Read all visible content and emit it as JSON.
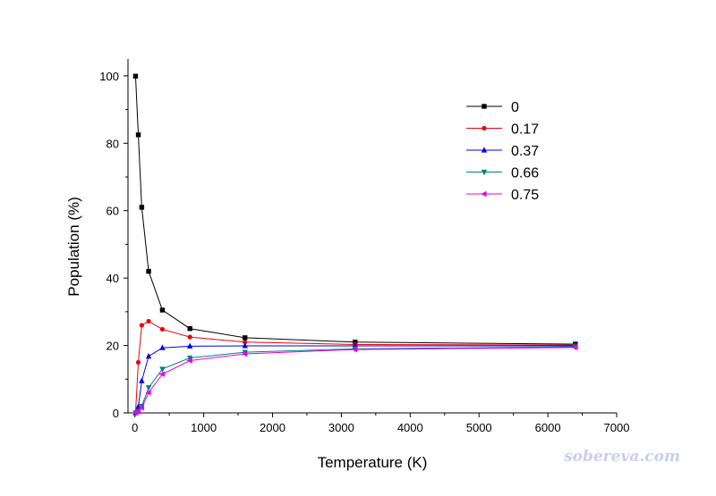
{
  "chart_data": {
    "type": "line",
    "xlabel": "Temperature (K)",
    "ylabel": "Population (%)",
    "xlim": [
      -100,
      7000
    ],
    "ylim": [
      0,
      105
    ],
    "xticks": [
      0,
      1000,
      2000,
      3000,
      4000,
      5000,
      6000,
      7000
    ],
    "yticks": [
      0,
      20,
      40,
      60,
      80,
      100
    ],
    "grid": false,
    "legend_position": "top-right",
    "x": [
      10,
      50,
      100,
      200,
      400,
      800,
      1600,
      3200,
      6400
    ],
    "series": [
      {
        "name": "0",
        "color": "#000000",
        "marker": "square",
        "values": [
          99.9,
          82.5,
          61.0,
          42.0,
          30.5,
          25.0,
          22.3,
          21.0,
          20.4
        ]
      },
      {
        "name": "0.17",
        "color": "#e8000b",
        "marker": "circle",
        "values": [
          0.1,
          15.0,
          26.0,
          27.2,
          24.8,
          22.5,
          21.0,
          20.3,
          20.1
        ]
      },
      {
        "name": "0.37",
        "color": "#0000e6",
        "marker": "triangle-up",
        "values": [
          0.0,
          1.8,
          9.5,
          16.8,
          19.3,
          19.8,
          19.9,
          19.9,
          19.9
        ]
      },
      {
        "name": "0.66",
        "color": "#008080",
        "marker": "triangle-down",
        "values": [
          0.0,
          0.5,
          2.0,
          7.5,
          13.0,
          16.3,
          18.0,
          19.0,
          19.6
        ]
      },
      {
        "name": "0.75",
        "color": "#e600e6",
        "marker": "triangle-left",
        "values": [
          0.0,
          0.3,
          1.5,
          6.0,
          11.5,
          15.5,
          17.5,
          18.8,
          19.4
        ]
      }
    ]
  },
  "watermark": "sobereva.com"
}
